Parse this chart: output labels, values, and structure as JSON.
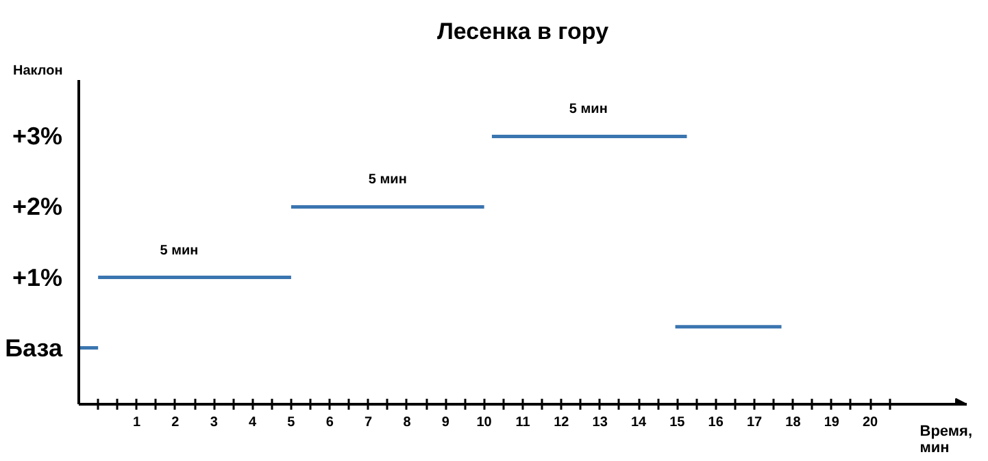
{
  "chart_data": {
    "type": "line",
    "title": "Лесенка в гору",
    "xlabel": "Время, мин",
    "ylabel": "Наклон",
    "series": [
      {
        "color": "#3a75b0",
        "x": [
          -0.5,
          0
        ],
        "values": [
          0,
          0
        ]
      },
      {
        "color": "#3a75b0",
        "x": [
          0,
          5
        ],
        "values": [
          1,
          1
        ]
      },
      {
        "color": "#3a75b0",
        "x": [
          5,
          10
        ],
        "values": [
          2,
          2
        ]
      },
      {
        "color": "#3a75b0",
        "x": [
          10.2,
          15.25
        ],
        "values": [
          3,
          3
        ]
      },
      {
        "color": "#3a75b0",
        "x": [
          14.95,
          17.7
        ],
        "values": [
          0.3,
          0.3
        ]
      }
    ],
    "annotations": [
      {
        "text": "5 мин",
        "x": 2.1,
        "y": 1
      },
      {
        "text": "5 мин",
        "x": 7.5,
        "y": 2
      },
      {
        "text": "5 мин",
        "x": 12.7,
        "y": 3
      }
    ],
    "xlim": [
      -0.5,
      22.5
    ],
    "ylim": [
      -0.8,
      3.8
    ],
    "xticks": [
      {
        "value": 0,
        "label": null
      },
      {
        "value": 0.5,
        "label": null
      },
      1,
      {
        "value": 1.5,
        "label": null
      },
      2,
      {
        "value": 2.5,
        "label": null
      },
      3,
      {
        "value": 3.5,
        "label": null
      },
      4,
      {
        "value": 4.5,
        "label": null
      },
      5,
      {
        "value": 5.5,
        "label": null
      },
      6,
      {
        "value": 6.5,
        "label": null
      },
      7,
      {
        "value": 7.5,
        "label": null
      },
      8,
      {
        "value": 8.5,
        "label": null
      },
      9,
      {
        "value": 9.5,
        "label": null
      },
      10,
      {
        "value": 10.5,
        "label": null
      },
      11,
      {
        "value": 11.5,
        "label": null
      },
      12,
      {
        "value": 12.5,
        "label": null
      },
      13,
      {
        "value": 13.5,
        "label": null
      },
      14,
      {
        "value": 14.5,
        "label": null
      },
      15,
      {
        "value": 15.5,
        "label": null
      },
      16,
      {
        "value": 16.5,
        "label": null
      },
      17,
      {
        "value": 17.5,
        "label": null
      },
      18,
      {
        "value": 18.5,
        "label": null
      },
      19,
      {
        "value": 19.5,
        "label": null
      },
      20,
      {
        "value": 20.5,
        "label": null
      }
    ],
    "yticks": [
      {
        "value": 0,
        "label": "База"
      },
      {
        "value": 1,
        "label": "+1%"
      },
      {
        "value": 2,
        "label": "+2%"
      },
      {
        "value": 3,
        "label": "+3%"
      }
    ],
    "grid": false
  }
}
